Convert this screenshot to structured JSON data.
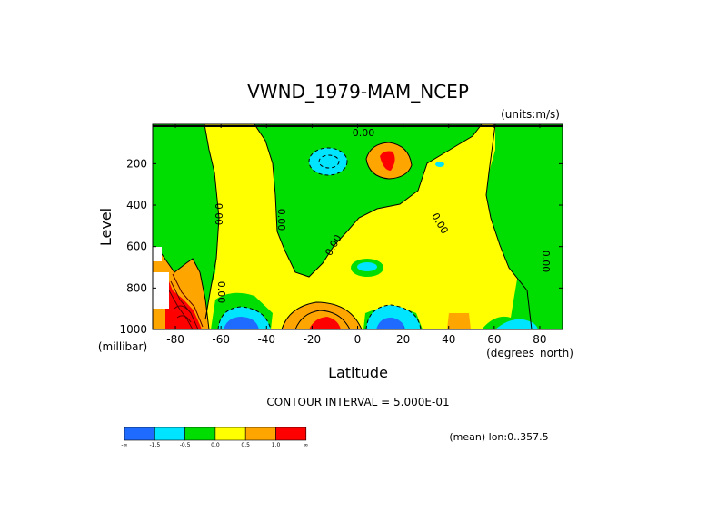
{
  "chart_data": {
    "type": "heatmap",
    "title": "VWND_1979-MAM_NCEP",
    "units_label": "(units:m/s)",
    "xlabel": "Latitude",
    "x_unit_label": "(degrees_north)",
    "ylabel": "Level",
    "y_unit_label": "(millibar)",
    "xlim": [
      -90,
      90
    ],
    "ylim": [
      1000,
      10
    ],
    "x_ticks": [
      -80,
      -60,
      -40,
      -20,
      0,
      20,
      40,
      60,
      80
    ],
    "x_tick_labels": [
      "-80",
      "-60",
      "-40",
      "-20",
      "0",
      "20",
      "40",
      "60",
      "80"
    ],
    "y_ticks": [
      1000,
      800,
      600,
      400,
      200
    ],
    "y_tick_labels": [
      "1000",
      "800",
      "600",
      "400",
      "200"
    ],
    "contour_interval_text": "CONTOUR INTERVAL = 5.000E-01",
    "mean_text": "(mean) lon:0..357.5",
    "contour_line_label": "0.00",
    "levels": [
      "-inf",
      -1.5,
      -0.5,
      0.0,
      0.5,
      1.0,
      "inf"
    ],
    "colorbar_labels": [
      "-∞",
      "-1.5",
      "-0.5",
      "0.0",
      "0.5",
      "1.0",
      "∞"
    ],
    "colors": [
      "#1f6bff",
      "#00e5ff",
      "#00dd00",
      "#ffff00",
      "#ffa500",
      "#ff0000"
    ],
    "features": [
      {
        "kind": "negative_center",
        "lat": -12,
        "level": 150,
        "value": -1.0
      },
      {
        "kind": "positive_center",
        "lat": 13,
        "level": 150,
        "value": 1.5
      },
      {
        "kind": "negative_center",
        "lat": -56,
        "level": 990,
        "value": -2.0
      },
      {
        "kind": "positive_center",
        "lat": -18,
        "level": 980,
        "value": 1.5
      },
      {
        "kind": "negative_center",
        "lat": 14,
        "level": 990,
        "value": -2.0
      },
      {
        "kind": "positive_center",
        "lat": -86,
        "level": 970,
        "value": 3.0
      },
      {
        "kind": "negative_center",
        "lat": 3,
        "level": 700,
        "value": -0.7
      },
      {
        "kind": "negative_center",
        "lat": 71,
        "level": 990,
        "value": -0.7
      }
    ]
  }
}
